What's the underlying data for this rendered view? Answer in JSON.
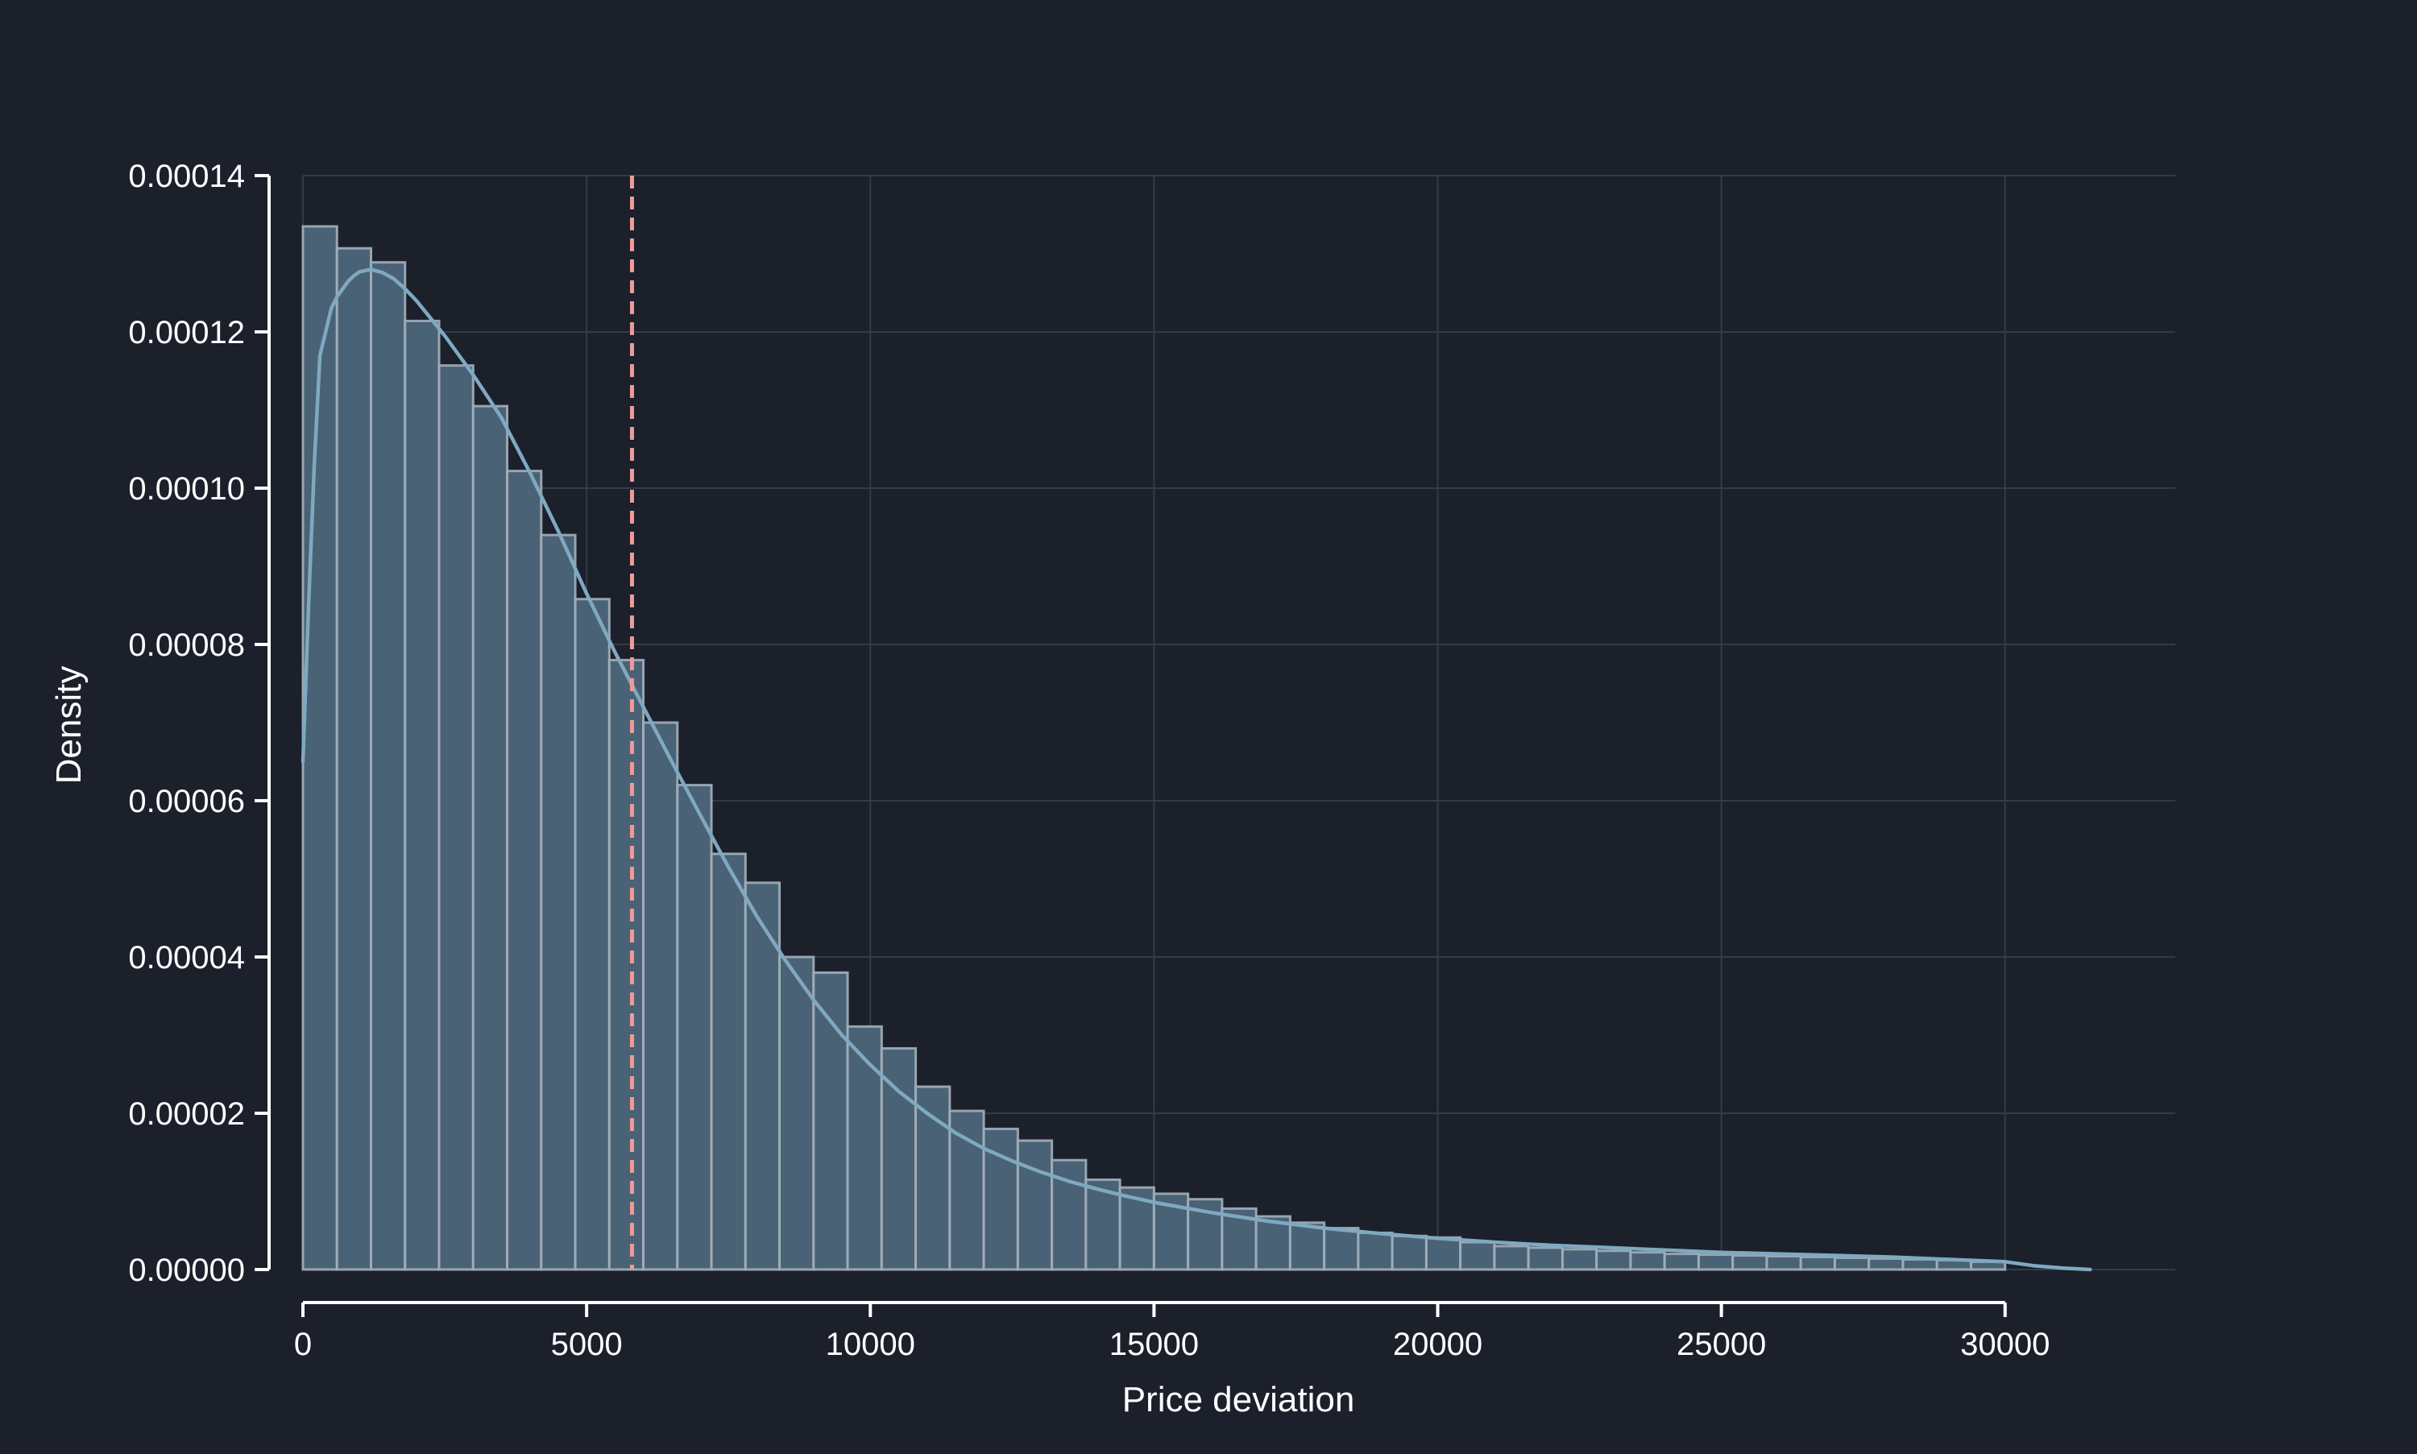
{
  "chart_data": {
    "type": "bar",
    "subtype": "histogram-with-kde",
    "xlabel": "Price deviation",
    "ylabel": "Density",
    "xlim": [
      0,
      33000
    ],
    "ylim": [
      0,
      0.00014
    ],
    "grid": true,
    "x_ticks": [
      0,
      5000,
      10000,
      15000,
      20000,
      25000,
      30000
    ],
    "x_tick_labels": [
      "0",
      "5000",
      "10000",
      "15000",
      "20000",
      "25000",
      "30000"
    ],
    "y_ticks": [
      0,
      2e-05,
      4e-05,
      6e-05,
      8e-05,
      0.0001,
      0.00012,
      0.00014
    ],
    "y_tick_labels": [
      "0.00000",
      "0.00002",
      "0.00004",
      "0.00006",
      "0.00008",
      "0.00010",
      "0.00012",
      "0.00014"
    ],
    "bin_width": 600,
    "bins_start": [
      0,
      600,
      1200,
      1800,
      2400,
      3000,
      3600,
      4200,
      4800,
      5400,
      6000,
      6600,
      7200,
      7800,
      8400,
      9000,
      9600,
      10200,
      10800,
      11400,
      12000,
      12600,
      13200,
      13800,
      14400,
      15000,
      15600,
      16200,
      16800,
      17400,
      18000,
      18600,
      19200,
      19800,
      20400,
      21000,
      21600,
      22200,
      22800,
      23400,
      24000,
      24600,
      25200,
      25800,
      26400,
      27000,
      27600,
      28200,
      28800,
      29400
    ],
    "values": [
      0.0001335,
      0.0001307,
      0.0001289,
      0.0001214,
      0.0001157,
      0.0001105,
      0.0001022,
      9.4e-05,
      8.58e-05,
      7.8e-05,
      7e-05,
      6.2e-05,
      5.32e-05,
      4.95e-05,
      4e-05,
      3.8e-05,
      3.11e-05,
      2.83e-05,
      2.34e-05,
      2.03e-05,
      1.8e-05,
      1.65e-05,
      1.4e-05,
      1.15e-05,
      1.05e-05,
      9.7e-06,
      9e-06,
      7.8e-06,
      6.8e-06,
      6e-06,
      5.3e-06,
      4.7e-06,
      4.3e-06,
      4.1e-06,
      3.5e-06,
      3e-06,
      2.8e-06,
      2.6e-06,
      2.4e-06,
      2.2e-06,
      2e-06,
      1.9e-06,
      1.8e-06,
      1.7e-06,
      1.6e-06,
      1.5e-06,
      1.4e-06,
      1.3e-06,
      1.2e-06,
      1e-06
    ],
    "kde": {
      "x": [
        0,
        100,
        200,
        300,
        400,
        500,
        600,
        700,
        800,
        900,
        1000,
        1200,
        1400,
        1600,
        1800,
        2000,
        2500,
        3000,
        3500,
        4000,
        4500,
        5000,
        5500,
        6000,
        6500,
        7000,
        7500,
        8000,
        8500,
        9000,
        9500,
        10000,
        10500,
        11000,
        11500,
        12000,
        12500,
        13000,
        13500,
        14000,
        14500,
        15000,
        16000,
        17000,
        18000,
        19000,
        20000,
        21000,
        22000,
        23000,
        24000,
        25000,
        26000,
        27000,
        28000,
        29000,
        30000,
        30500,
        31000,
        31500
      ],
      "y": [
        6.5e-05,
        8.5e-05,
        0.000103,
        0.000117,
        0.00012,
        0.000123,
        0.0001245,
        0.0001255,
        0.0001265,
        0.0001272,
        0.0001277,
        0.000128,
        0.0001276,
        0.0001268,
        0.0001255,
        0.000124,
        0.0001195,
        0.0001145,
        0.000109,
        0.000102,
        9.45e-05,
        8.65e-05,
        7.9e-05,
        7.2e-05,
        6.5e-05,
        5.82e-05,
        5.15e-05,
        4.52e-05,
        3.96e-05,
        3.45e-05,
        3e-05,
        2.62e-05,
        2.28e-05,
        2e-05,
        1.75e-05,
        1.55e-05,
        1.39e-05,
        1.25e-05,
        1.13e-05,
        1.03e-05,
        9.4e-06,
        8.6e-06,
        7.3e-06,
        6.2e-06,
        5.3e-06,
        4.6e-06,
        4e-06,
        3.5e-06,
        3.1e-06,
        2.8e-06,
        2.5e-06,
        2.2e-06,
        2e-06,
        1.8e-06,
        1.6e-06,
        1.3e-06,
        1e-06,
        5e-07,
        2e-07,
        0.0
      ]
    },
    "mean_line_x": 5800,
    "colors": {
      "background": "#1b202b",
      "bar_fill": "#4a6275",
      "bar_edge": "#a3b0bb",
      "kde_line": "#7fa9c0",
      "mean_line": "#ee9a98",
      "grid": "#343b47",
      "axis": "#ffffff",
      "text": "#ffffff"
    }
  }
}
